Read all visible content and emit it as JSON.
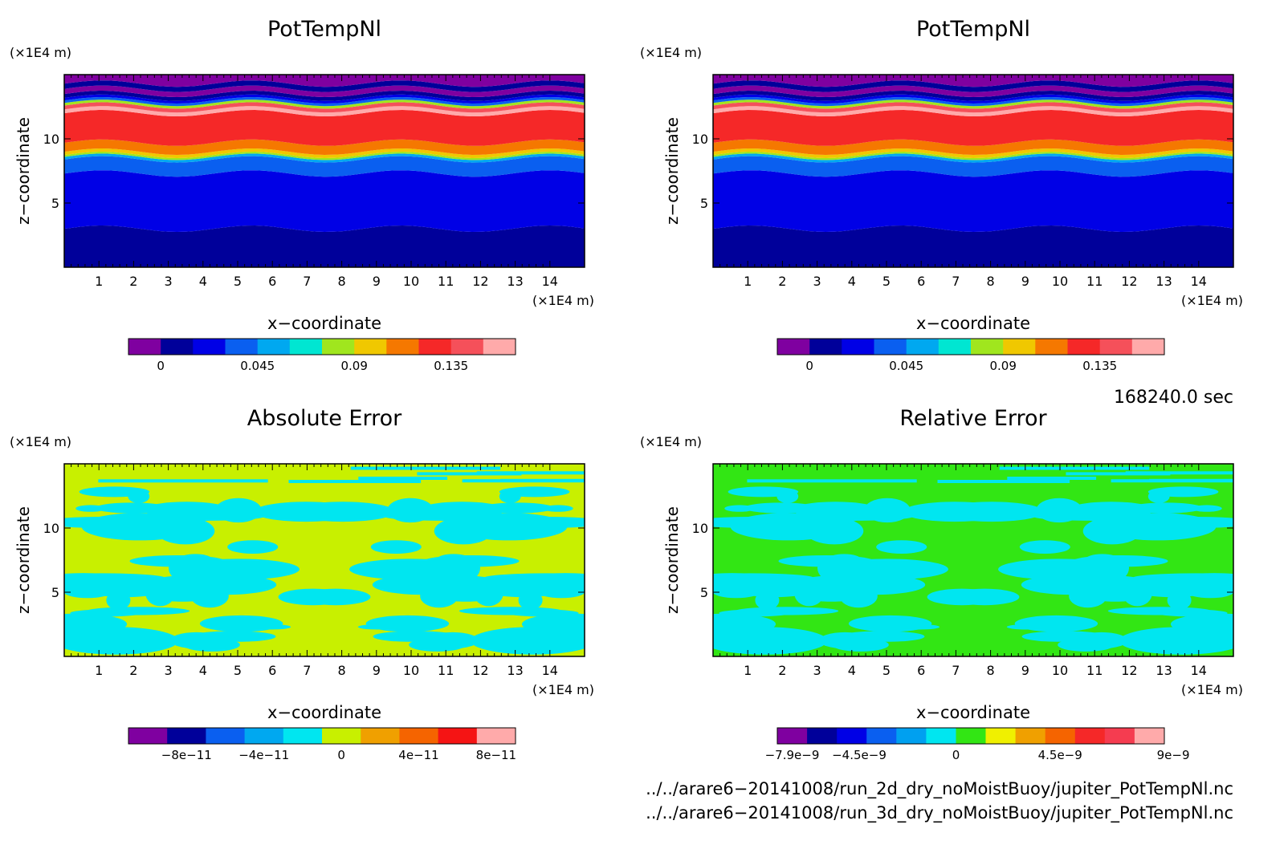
{
  "chart_data": [
    {
      "type": "heatmap",
      "title": "PotTempNl",
      "xlabel": "x−coordinate",
      "ylabel": "z−coordinate",
      "x_unit": "(×1E4 m)",
      "y_unit": "(×1E4 m)",
      "xlim": [
        0,
        15
      ],
      "ylim": [
        0,
        15
      ],
      "xticks": [
        "1",
        "2",
        "3",
        "4",
        "5",
        "6",
        "7",
        "8",
        "9",
        "10",
        "11",
        "12",
        "13",
        "14"
      ],
      "yticks": [
        "5",
        "10"
      ],
      "colorbar": {
        "colors": [
          "#7f00a0",
          "#00009a",
          "#0000e6",
          "#0a5ff0",
          "#00a8f0",
          "#00e6d2",
          "#a0e61e",
          "#f0c800",
          "#f57800",
          "#f52828",
          "#f5505a",
          "#ffaaaa"
        ],
        "labels": [
          "0",
          "0.045",
          "0.09",
          "0.135"
        ],
        "label_positions": [
          0.5,
          3.5,
          6.5,
          9.5
        ]
      },
      "layers": [
        {
          "z": 0,
          "color": "#00009a"
        },
        {
          "z": 3.0,
          "color": "#0000e6"
        },
        {
          "z": 7.3,
          "color": "#0a5ff0"
        },
        {
          "z": 8.4,
          "color": "#00a8f0"
        },
        {
          "z": 8.6,
          "color": "#a0e61e"
        },
        {
          "z": 8.75,
          "color": "#f0c800"
        },
        {
          "z": 9.0,
          "color": "#f57800"
        },
        {
          "z": 9.7,
          "color": "#f52828"
        },
        {
          "z": 12.0,
          "color": "#ffaaaa"
        },
        {
          "z": 12.3,
          "color": "#f5505a"
        },
        {
          "z": 12.6,
          "color": "#a0e61e"
        },
        {
          "z": 12.8,
          "color": "#0a5ff0"
        },
        {
          "z": 13.0,
          "color": "#0000e6"
        },
        {
          "z": 13.2,
          "color": "#00009a"
        },
        {
          "z": 13.5,
          "color": "#7f00a0"
        },
        {
          "z": 13.9,
          "color": "#00009a"
        },
        {
          "z": 14.3,
          "color": "#7f00a0"
        },
        {
          "z": 15,
          "color": "#7f00a0"
        }
      ]
    },
    {
      "type": "heatmap",
      "title": "PotTempNl",
      "xlabel": "x−coordinate",
      "ylabel": "z−coordinate",
      "x_unit": "(×1E4 m)",
      "y_unit": "(×1E4 m)",
      "xlim": [
        0,
        15
      ],
      "ylim": [
        0,
        15
      ],
      "xticks": [
        "1",
        "2",
        "3",
        "4",
        "5",
        "6",
        "7",
        "8",
        "9",
        "10",
        "11",
        "12",
        "13",
        "14"
      ],
      "yticks": [
        "5",
        "10"
      ],
      "colorbar": {
        "colors": [
          "#7f00a0",
          "#00009a",
          "#0000e6",
          "#0a5ff0",
          "#00a8f0",
          "#00e6d2",
          "#a0e61e",
          "#f0c800",
          "#f57800",
          "#f52828",
          "#f5505a",
          "#ffaaaa"
        ],
        "labels": [
          "0",
          "0.045",
          "0.09",
          "0.135"
        ],
        "label_positions": [
          0.5,
          3.5,
          6.5,
          9.5
        ]
      },
      "layers": [
        {
          "z": 0,
          "color": "#00009a"
        },
        {
          "z": 3.0,
          "color": "#0000e6"
        },
        {
          "z": 7.3,
          "color": "#0a5ff0"
        },
        {
          "z": 8.4,
          "color": "#00a8f0"
        },
        {
          "z": 8.6,
          "color": "#a0e61e"
        },
        {
          "z": 8.75,
          "color": "#f0c800"
        },
        {
          "z": 9.0,
          "color": "#f57800"
        },
        {
          "z": 9.7,
          "color": "#f52828"
        },
        {
          "z": 12.0,
          "color": "#ffaaaa"
        },
        {
          "z": 12.3,
          "color": "#f5505a"
        },
        {
          "z": 12.6,
          "color": "#a0e61e"
        },
        {
          "z": 12.8,
          "color": "#0a5ff0"
        },
        {
          "z": 13.0,
          "color": "#0000e6"
        },
        {
          "z": 13.2,
          "color": "#00009a"
        },
        {
          "z": 13.5,
          "color": "#7f00a0"
        },
        {
          "z": 13.9,
          "color": "#00009a"
        },
        {
          "z": 14.3,
          "color": "#7f00a0"
        },
        {
          "z": 15,
          "color": "#7f00a0"
        }
      ]
    },
    {
      "type": "heatmap",
      "title": "Absolute Error",
      "xlabel": "x−coordinate",
      "ylabel": "z−coordinate",
      "x_unit": "(×1E4 m)",
      "y_unit": "(×1E4 m)",
      "xlim": [
        0,
        15
      ],
      "ylim": [
        0,
        15
      ],
      "xticks": [
        "1",
        "2",
        "3",
        "4",
        "5",
        "6",
        "7",
        "8",
        "9",
        "10",
        "11",
        "12",
        "13",
        "14"
      ],
      "yticks": [
        "5",
        "10"
      ],
      "colorbar": {
        "colors": [
          "#7f00a0",
          "#00009a",
          "#0a5ff0",
          "#00a8f0",
          "#00e6f0",
          "#c8f000",
          "#f0a000",
          "#f56400",
          "#f51414",
          "#ffaaaa"
        ],
        "labels": [
          "−8e−11",
          "−4e−11",
          "0",
          "4e−11",
          "8e−11"
        ],
        "label_positions": [
          1,
          3,
          5,
          7,
          9
        ]
      },
      "background": "#c8f000",
      "blob_color": "#00e6f0",
      "seed": 7
    },
    {
      "type": "heatmap",
      "title": "Relative Error",
      "xlabel": "x−coordinate",
      "ylabel": "z−coordinate",
      "x_unit": "(×1E4 m)",
      "y_unit": "(×1E4 m)",
      "xlim": [
        0,
        15
      ],
      "ylim": [
        0,
        15
      ],
      "xticks": [
        "1",
        "2",
        "3",
        "4",
        "5",
        "6",
        "7",
        "8",
        "9",
        "10",
        "11",
        "12",
        "13",
        "14"
      ],
      "yticks": [
        "5",
        "10"
      ],
      "colorbar": {
        "colors": [
          "#7f00a0",
          "#00009a",
          "#0000e6",
          "#0a5ff0",
          "#00a0f0",
          "#00e6f0",
          "#32e614",
          "#f0f000",
          "#f0a000",
          "#f56400",
          "#f52828",
          "#f53c50",
          "#ffaaaa"
        ],
        "labels": [
          "−7.9e−9",
          "−4.5e−9",
          "0",
          "4.5e−9",
          "9e−9"
        ],
        "label_positions": [
          0,
          2.25,
          5.5,
          9,
          12.8
        ]
      },
      "background": "#32e614",
      "blob_color": "#00e6f0",
      "seed": 7
    }
  ],
  "time_label": "168240.0 sec",
  "file_paths": [
    "../../arare6−20141008/run_2d_dry_noMoistBuoy/jupiter_PotTempNl.nc",
    "../../arare6−20141008/run_3d_dry_noMoistBuoy/jupiter_PotTempNl.nc"
  ]
}
